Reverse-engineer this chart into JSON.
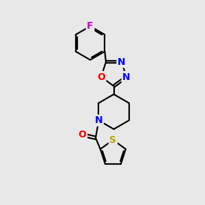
{
  "bg_color": "#e8e8e8",
  "bond_color": "#000000",
  "bond_width": 1.6,
  "atom_colors": {
    "F": "#cc00cc",
    "O": "#ff0000",
    "N": "#0000ff",
    "S": "#aaaa00",
    "C": "#000000"
  },
  "font_size_atom": 10,
  "xlim": [
    0,
    10
  ],
  "ylim": [
    0,
    10
  ]
}
